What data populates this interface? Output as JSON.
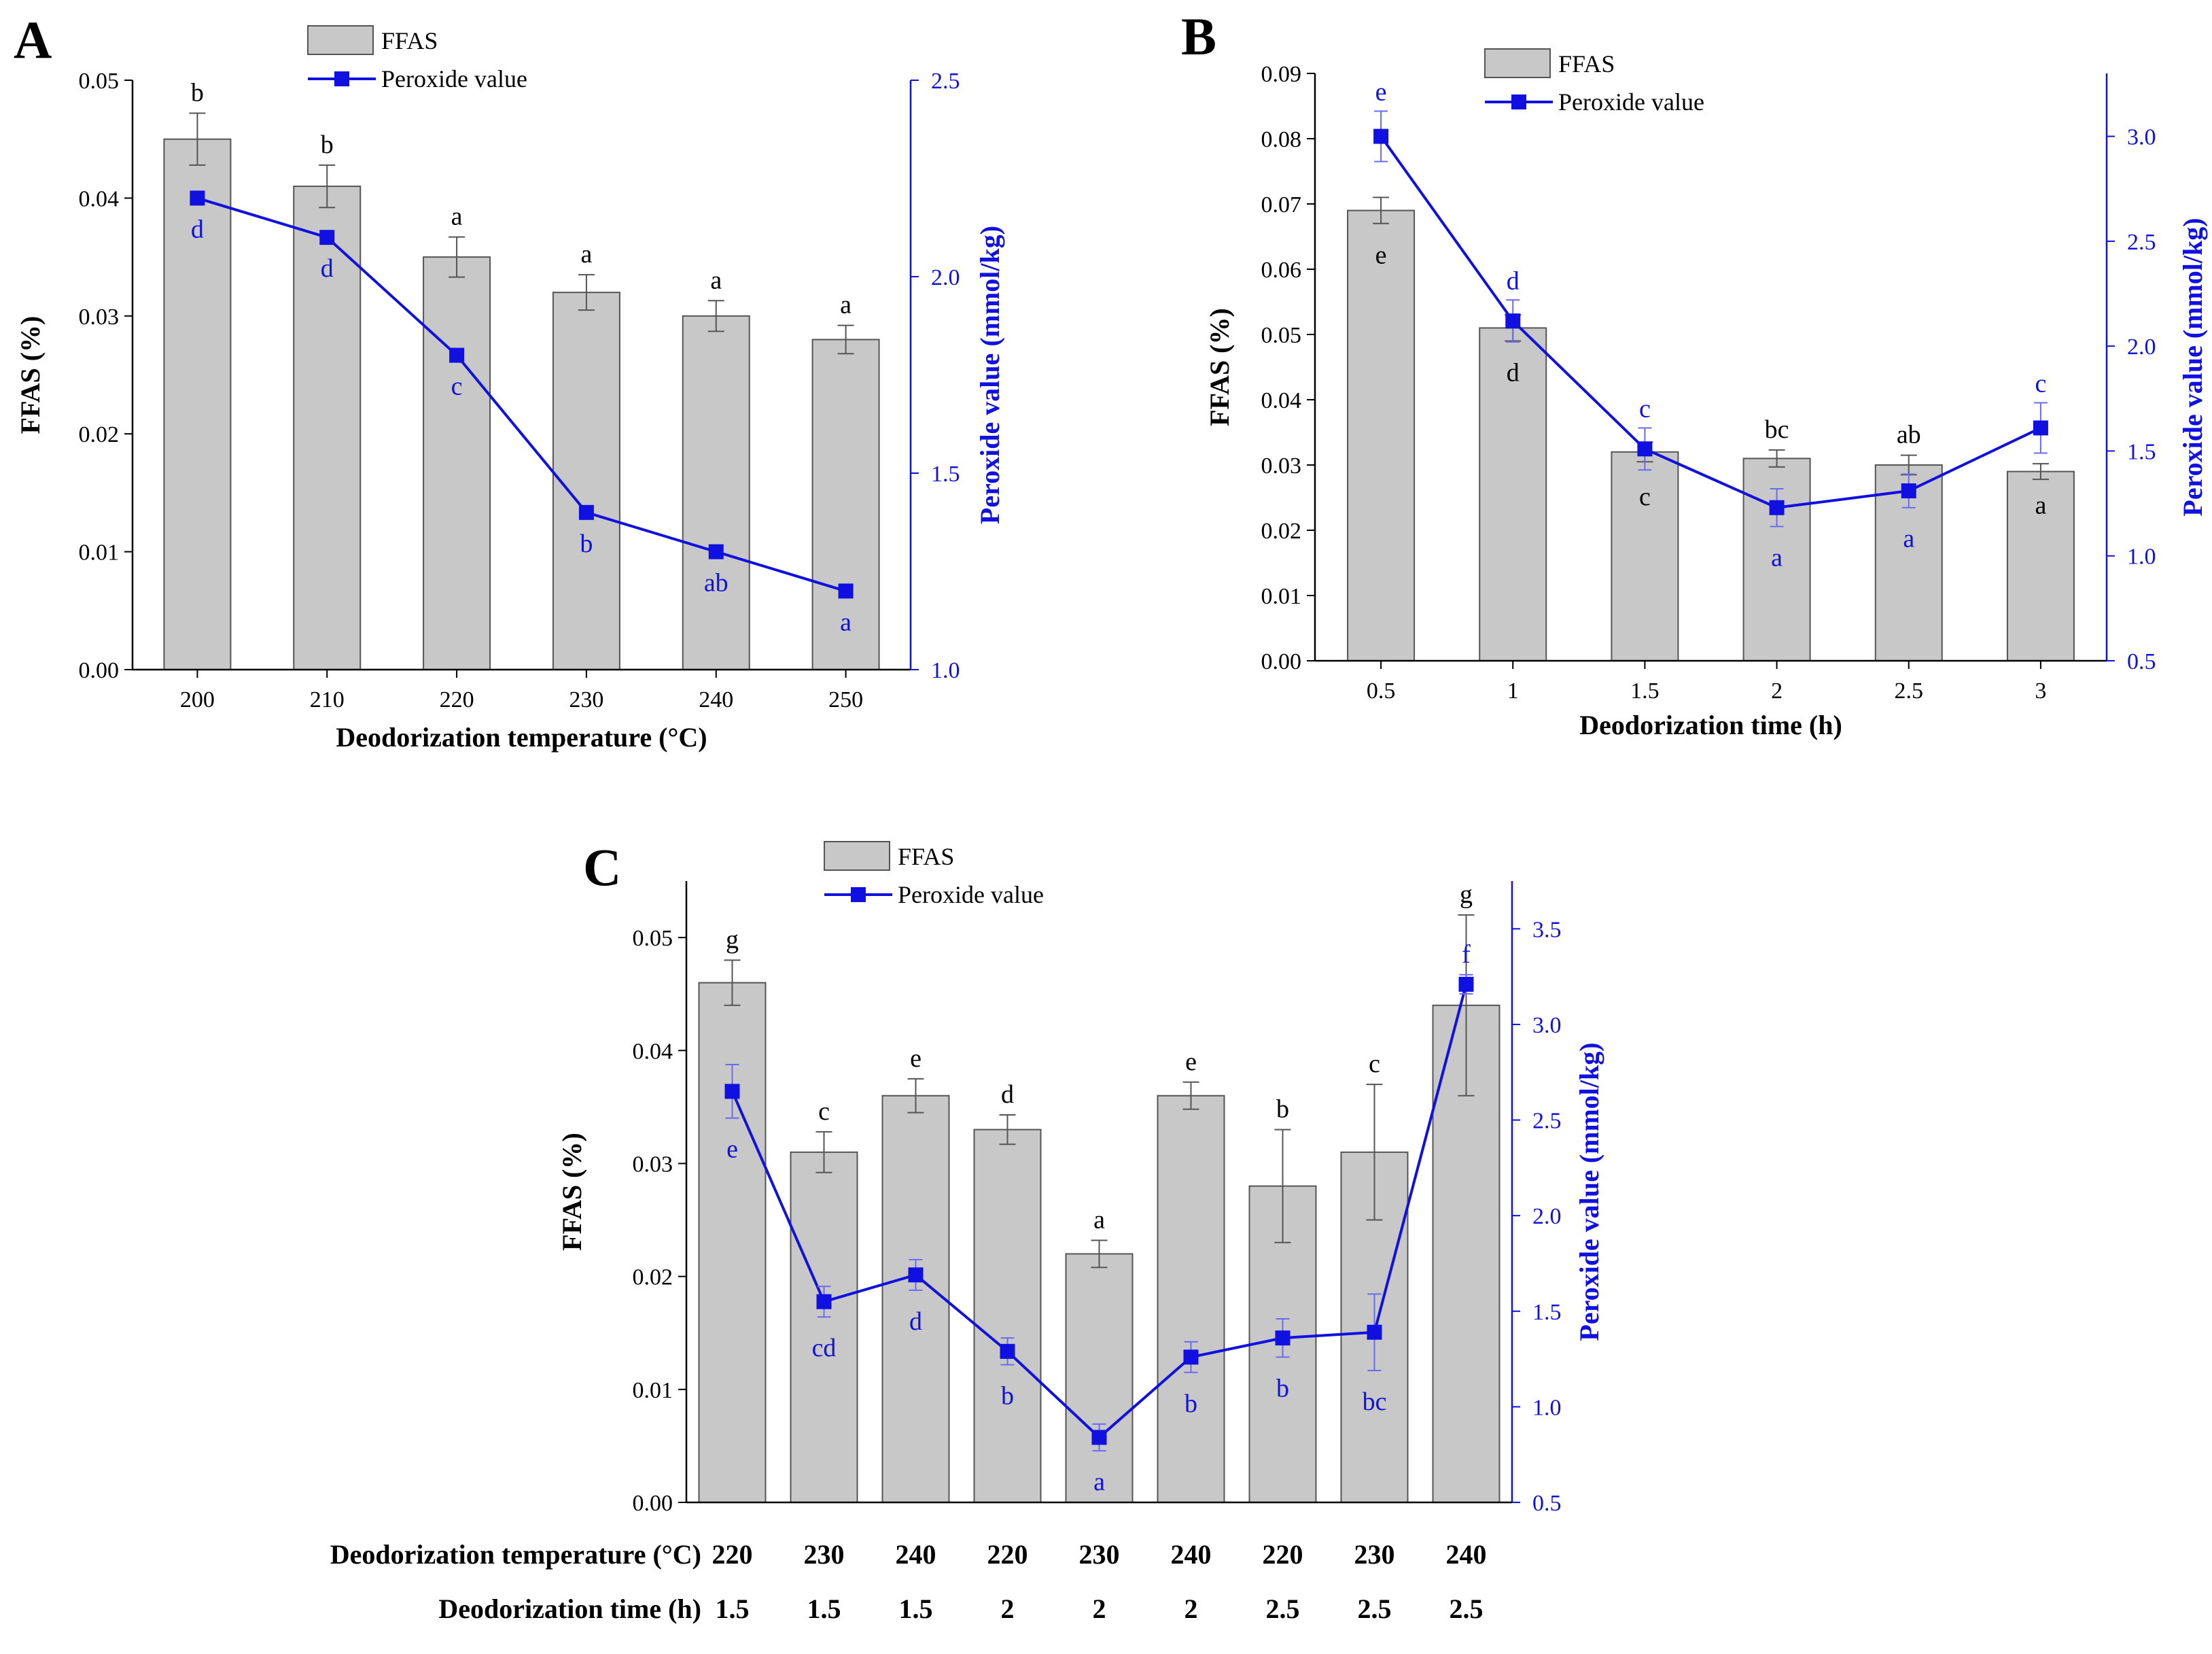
{
  "colors": {
    "bar": "#c8c8c8",
    "bar_stroke": "#555555",
    "line": "#1010e0",
    "axis": "#000000"
  },
  "chart_data": [
    {
      "id": "A",
      "type": "bar+line",
      "panel_label": "A",
      "xlabel": "Deodorization temperature (°C)",
      "ylabel": "FFAS (%)",
      "y2label": "Peroxide value (mmol/kg)",
      "categories": [
        "200",
        "210",
        "220",
        "230",
        "240",
        "250"
      ],
      "ylim": [
        0,
        0.05
      ],
      "yticks": [
        "0.00",
        "0.01",
        "0.02",
        "0.03",
        "0.04",
        "0.05"
      ],
      "y2lim": [
        1.0,
        2.5
      ],
      "y2ticks": [
        "1.0",
        "1.5",
        "2.0",
        "2.5"
      ],
      "legend": {
        "bar": "FFAS",
        "line": "Peroxide value"
      },
      "series": [
        {
          "name": "FFAS",
          "kind": "bar",
          "values": [
            0.045,
            0.041,
            0.035,
            0.032,
            0.03,
            0.028
          ],
          "errors": [
            0.0022,
            0.0018,
            0.0017,
            0.0015,
            0.0013,
            0.0012
          ],
          "labels": [
            "b",
            "b",
            "a",
            "a",
            "a",
            "a"
          ]
        },
        {
          "name": "Peroxide value",
          "kind": "line",
          "values": [
            2.2,
            2.1,
            1.8,
            1.4,
            1.3,
            1.2
          ],
          "errors": [
            0,
            0,
            0,
            0,
            0,
            0
          ],
          "labels": [
            "d",
            "d",
            "c",
            "b",
            "ab",
            "a"
          ]
        }
      ]
    },
    {
      "id": "B",
      "type": "bar+line",
      "panel_label": "B",
      "xlabel": "Deodorization time (h)",
      "ylabel": "FFAS (%)",
      "y2label": "Peroxide value (mmol/kg)",
      "categories": [
        "0.5",
        "1",
        "1.5",
        "2",
        "2.5",
        "3"
      ],
      "ylim": [
        0,
        0.09
      ],
      "yticks": [
        "0.00",
        "0.01",
        "0.02",
        "0.03",
        "0.04",
        "0.05",
        "0.06",
        "0.07",
        "0.08",
        "0.09"
      ],
      "y2lim": [
        0.5,
        3.3
      ],
      "y2ticks": [
        "0.5",
        "1.0",
        "1.5",
        "2.0",
        "2.5",
        "3.0"
      ],
      "legend": {
        "bar": "FFAS",
        "line": "Peroxide value"
      },
      "series": [
        {
          "name": "FFAS",
          "kind": "bar",
          "values": [
            0.069,
            0.051,
            0.032,
            0.031,
            0.03,
            0.029
          ],
          "errors": [
            0.002,
            0.002,
            0.0015,
            0.0013,
            0.0015,
            0.0012
          ],
          "labels": [
            "e",
            "d",
            "c",
            "bc",
            "ab",
            "a"
          ]
        },
        {
          "name": "Peroxide value",
          "kind": "line",
          "values": [
            3.0,
            2.12,
            1.51,
            1.23,
            1.31,
            1.61
          ],
          "errors": [
            0.12,
            0.1,
            0.1,
            0.09,
            0.08,
            0.12
          ],
          "labels": [
            "e",
            "d",
            "c",
            "a",
            "a",
            "c"
          ]
        }
      ]
    },
    {
      "id": "C",
      "type": "bar+line",
      "panel_label": "C",
      "xlabel_rows": [
        {
          "label": "Deodorization temperature (°C)",
          "values": [
            "220",
            "230",
            "240",
            "220",
            "230",
            "240",
            "220",
            "230",
            "240"
          ]
        },
        {
          "label": "Deodorization time (h)",
          "values": [
            "1.5",
            "1.5",
            "1.5",
            "2",
            "2",
            "2",
            "2.5",
            "2.5",
            "2.5"
          ]
        }
      ],
      "ylabel": "FFAS (%)",
      "y2label": "Peroxide value (mmol/kg)",
      "ylim": [
        0,
        0.055
      ],
      "yticks": [
        "0.00",
        "0.01",
        "0.02",
        "0.03",
        "0.04",
        "0.05"
      ],
      "y2lim": [
        0.5,
        3.75
      ],
      "y2ticks": [
        "0.5",
        "1.0",
        "1.5",
        "2.0",
        "2.5",
        "3.0",
        "3.5"
      ],
      "legend": {
        "bar": "FFAS",
        "line": "Peroxide value"
      },
      "series": [
        {
          "name": "FFAS",
          "kind": "bar",
          "values": [
            0.046,
            0.031,
            0.036,
            0.033,
            0.022,
            0.036,
            0.028,
            0.031,
            0.044
          ],
          "errors": [
            0.002,
            0.0018,
            0.0015,
            0.0013,
            0.0012,
            0.0012,
            0.005,
            0.006,
            0.008
          ],
          "labels": [
            "g",
            "c",
            "e",
            "d",
            "a",
            "e",
            "b",
            "c",
            "g"
          ]
        },
        {
          "name": "Peroxide value",
          "kind": "line",
          "values": [
            2.65,
            1.55,
            1.69,
            1.29,
            0.84,
            1.26,
            1.36,
            1.39,
            3.21
          ],
          "errors": [
            0.14,
            0.08,
            0.08,
            0.07,
            0.07,
            0.08,
            0.1,
            0.2,
            0.05
          ],
          "labels": [
            "e",
            "cd",
            "d",
            "b",
            "a",
            "b",
            "b",
            "bc",
            "f"
          ]
        }
      ]
    }
  ]
}
